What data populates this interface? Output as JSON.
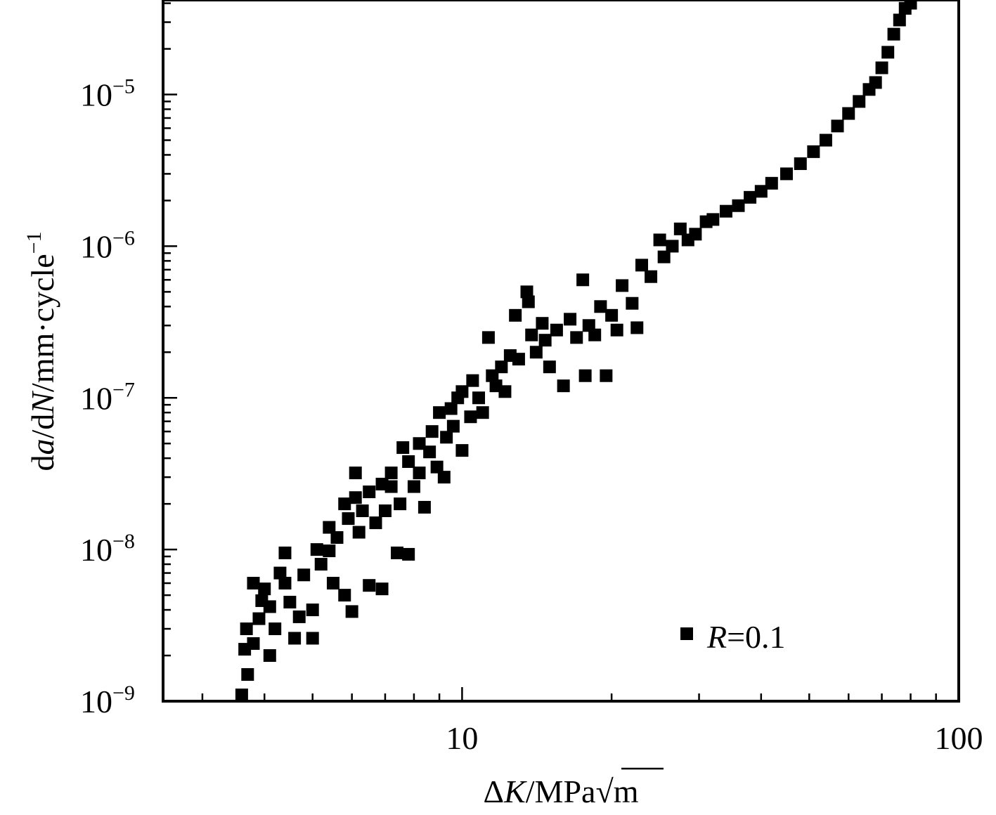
{
  "chart_data": {
    "type": "scatter",
    "xscale": "log",
    "yscale": "log",
    "xlim": [
      2.5,
      100
    ],
    "ylim": [
      1e-09,
      4.2e-05
    ],
    "x_ticks": [
      {
        "value": 10,
        "label": "10"
      },
      {
        "value": 100,
        "label": "100"
      }
    ],
    "y_ticks": [
      {
        "value": 1e-09,
        "base": "10",
        "exp": "−9"
      },
      {
        "value": 1e-08,
        "base": "10",
        "exp": "−8"
      },
      {
        "value": 1e-07,
        "base": "10",
        "exp": "−7"
      },
      {
        "value": 1e-06,
        "base": "10",
        "exp": "−6"
      },
      {
        "value": 1e-05,
        "base": "10",
        "exp": "−5"
      }
    ],
    "xlabel": {
      "pre": "Δ",
      "var": "K",
      "unit": "/MPa",
      "root": "√",
      "rootarg": "m"
    },
    "ylabel": {
      "p1": "d",
      "v1": "a",
      "p2": "/d",
      "v2": "N",
      "p3": "/mm·cycle",
      "sup": "−1"
    },
    "legend": {
      "position": "bottom-right",
      "var": "R",
      "rest": "=0.1"
    },
    "marker_color": "#000000",
    "series": [
      {
        "name": "R=0.1",
        "points": [
          [
            3.6,
            1.1e-09
          ],
          [
            3.7,
            1.5e-09
          ],
          [
            3.65,
            2.2e-09
          ],
          [
            3.68,
            3e-09
          ],
          [
            3.8,
            2.4e-09
          ],
          [
            3.9,
            3.5e-09
          ],
          [
            3.95,
            4.6e-09
          ],
          [
            3.8,
            6e-09
          ],
          [
            4.0,
            5.5e-09
          ],
          [
            4.1,
            2e-09
          ],
          [
            4.2,
            3e-09
          ],
          [
            4.3,
            7e-09
          ],
          [
            4.1,
            4.2e-09
          ],
          [
            4.4,
            9.5e-09
          ],
          [
            4.5,
            4.5e-09
          ],
          [
            4.4,
            6e-09
          ],
          [
            4.6,
            2.6e-09
          ],
          [
            4.7,
            3.6e-09
          ],
          [
            4.8,
            6.8e-09
          ],
          [
            5.0,
            2.6e-09
          ],
          [
            5.0,
            4e-09
          ],
          [
            5.1,
            1e-08
          ],
          [
            5.2,
            8e-09
          ],
          [
            5.4,
            9.8e-09
          ],
          [
            5.4,
            1.4e-08
          ],
          [
            5.5,
            6e-09
          ],
          [
            5.6,
            1.2e-08
          ],
          [
            5.8,
            5e-09
          ],
          [
            5.8,
            2e-08
          ],
          [
            5.9,
            1.6e-08
          ],
          [
            6.0,
            3.9e-09
          ],
          [
            6.1,
            3.2e-08
          ],
          [
            6.1,
            2.2e-08
          ],
          [
            6.2,
            1.3e-08
          ],
          [
            6.3,
            1.8e-08
          ],
          [
            6.5,
            5.8e-09
          ],
          [
            6.5,
            2.4e-08
          ],
          [
            6.7,
            1.5e-08
          ],
          [
            6.9,
            2.7e-08
          ],
          [
            6.9,
            5.5e-09
          ],
          [
            7.0,
            1.8e-08
          ],
          [
            7.2,
            3.2e-08
          ],
          [
            7.2,
            2.6e-08
          ],
          [
            7.4,
            9.5e-09
          ],
          [
            7.5,
            2e-08
          ],
          [
            7.6,
            4.7e-08
          ],
          [
            7.8,
            9.3e-09
          ],
          [
            7.8,
            3.8e-08
          ],
          [
            8.0,
            2.6e-08
          ],
          [
            8.2,
            5e-08
          ],
          [
            8.2,
            3.2e-08
          ],
          [
            8.4,
            1.9e-08
          ],
          [
            8.6,
            4.4e-08
          ],
          [
            8.7,
            6e-08
          ],
          [
            8.9,
            3.5e-08
          ],
          [
            9.0,
            8e-08
          ],
          [
            9.2,
            3e-08
          ],
          [
            9.3,
            5.5e-08
          ],
          [
            9.5,
            8.5e-08
          ],
          [
            9.6,
            6.5e-08
          ],
          [
            9.8,
            1e-07
          ],
          [
            10.0,
            4.5e-08
          ],
          [
            10.0,
            1.1e-07
          ],
          [
            10.4,
            7.5e-08
          ],
          [
            10.5,
            1.3e-07
          ],
          [
            10.8,
            1e-07
          ],
          [
            11.0,
            8e-08
          ],
          [
            11.3,
            2.5e-07
          ],
          [
            11.5,
            1.4e-07
          ],
          [
            11.7,
            1.2e-07
          ],
          [
            12.0,
            1.6e-07
          ],
          [
            12.2,
            1.1e-07
          ],
          [
            12.5,
            1.9e-07
          ],
          [
            12.8,
            3.5e-07
          ],
          [
            13.0,
            1.8e-07
          ],
          [
            13.5,
            5e-07
          ],
          [
            13.6,
            4.3e-07
          ],
          [
            13.8,
            2.6e-07
          ],
          [
            14.1,
            2e-07
          ],
          [
            14.5,
            3.1e-07
          ],
          [
            14.7,
            2.4e-07
          ],
          [
            15.0,
            1.6e-07
          ],
          [
            15.5,
            2.8e-07
          ],
          [
            16.0,
            1.2e-07
          ],
          [
            16.5,
            3.3e-07
          ],
          [
            17.0,
            2.5e-07
          ],
          [
            17.5,
            6e-07
          ],
          [
            17.7,
            1.4e-07
          ],
          [
            18.0,
            3e-07
          ],
          [
            18.5,
            2.6e-07
          ],
          [
            19.0,
            4e-07
          ],
          [
            19.5,
            1.4e-07
          ],
          [
            20.0,
            3.5e-07
          ],
          [
            20.5,
            2.8e-07
          ],
          [
            21.0,
            5.5e-07
          ],
          [
            22.0,
            4.2e-07
          ],
          [
            22.5,
            2.9e-07
          ],
          [
            23.0,
            7.5e-07
          ],
          [
            24.0,
            6.3e-07
          ],
          [
            25.0,
            1.1e-06
          ],
          [
            25.5,
            8.5e-07
          ],
          [
            26.5,
            1e-06
          ],
          [
            27.5,
            1.3e-06
          ],
          [
            28.5,
            1.1e-06
          ],
          [
            29.5,
            1.2e-06
          ],
          [
            31.0,
            1.45e-06
          ],
          [
            32.0,
            1.5e-06
          ],
          [
            34.0,
            1.7e-06
          ],
          [
            36.0,
            1.85e-06
          ],
          [
            38.0,
            2.1e-06
          ],
          [
            40.0,
            2.3e-06
          ],
          [
            42.0,
            2.6e-06
          ],
          [
            45.0,
            3e-06
          ],
          [
            48.0,
            3.5e-06
          ],
          [
            51.0,
            4.2e-06
          ],
          [
            54.0,
            5e-06
          ],
          [
            57.0,
            6.2e-06
          ],
          [
            60.0,
            7.5e-06
          ],
          [
            63.0,
            9e-06
          ],
          [
            66.0,
            1.08e-05
          ],
          [
            68.0,
            1.2e-05
          ],
          [
            70.0,
            1.5e-05
          ],
          [
            72.0,
            1.9e-05
          ],
          [
            74.0,
            2.5e-05
          ],
          [
            76.0,
            3.1e-05
          ],
          [
            78.0,
            3.7e-05
          ],
          [
            80.0,
            4e-05
          ]
        ]
      }
    ]
  }
}
